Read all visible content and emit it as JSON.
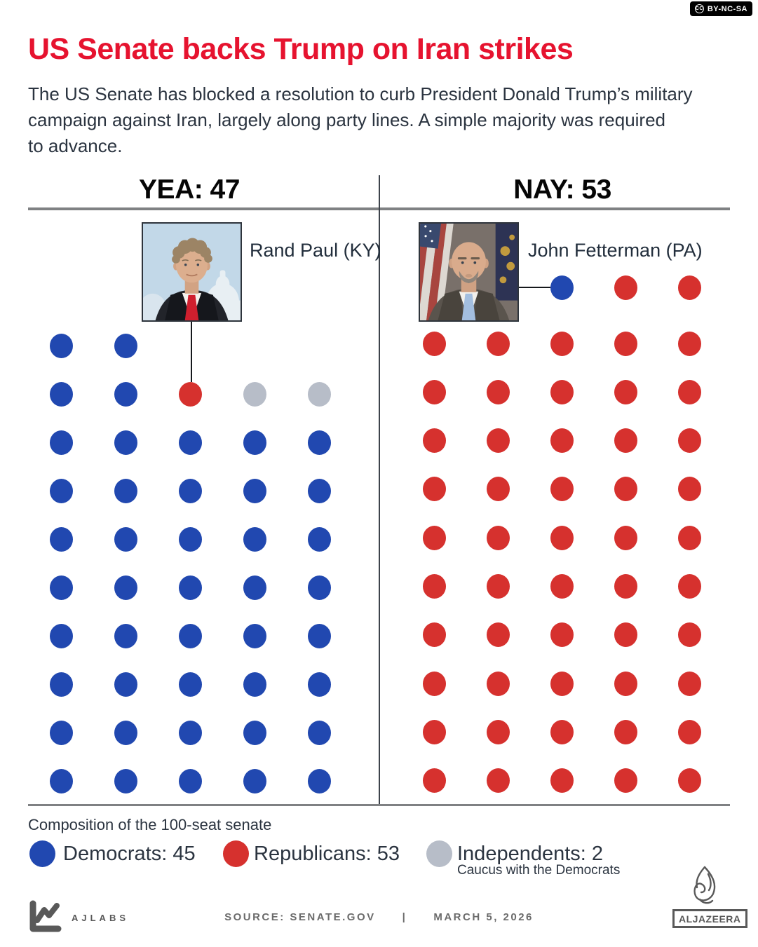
{
  "badge": {
    "cc": "CC",
    "license": "BY-NC-SA"
  },
  "header": {
    "title": "US Senate backs Trump on Iran strikes",
    "intro": "The US Senate has blocked a resolution to curb President Donald Trump’s military\ncampaign against Iran, largely along party lines. A simple majority was required\nto advance."
  },
  "chart_data": {
    "type": "unit_dot_chart",
    "title": "US Senate backs Trump on Iran strikes",
    "colors": {
      "D": "#2148b0",
      "R": "#d6312e",
      "I": "#b7bdc8"
    },
    "groups": [
      {
        "id": "yea",
        "label": "YEA: 47",
        "total": 47,
        "rows": [
          [
            "D",
            "D",
            "",
            "",
            ""
          ],
          [
            "D",
            "D",
            "R",
            "I",
            "I"
          ],
          [
            "D",
            "D",
            "D",
            "D",
            "D"
          ],
          [
            "D",
            "D",
            "D",
            "D",
            "D"
          ],
          [
            "D",
            "D",
            "D",
            "D",
            "D"
          ],
          [
            "D",
            "D",
            "D",
            "D",
            "D"
          ],
          [
            "D",
            "D",
            "D",
            "D",
            "D"
          ],
          [
            "D",
            "D",
            "D",
            "D",
            "D"
          ],
          [
            "D",
            "D",
            "D",
            "D",
            "D"
          ],
          [
            "D",
            "D",
            "D",
            "D",
            "D"
          ]
        ]
      },
      {
        "id": "nay",
        "label": "NAY: 53",
        "total": 53,
        "rows": [
          [
            "",
            "",
            "D",
            "R",
            "R"
          ],
          [
            "R",
            "R",
            "R",
            "R",
            "R"
          ],
          [
            "R",
            "R",
            "R",
            "R",
            "R"
          ],
          [
            "R",
            "R",
            "R",
            "R",
            "R"
          ],
          [
            "R",
            "R",
            "R",
            "R",
            "R"
          ],
          [
            "R",
            "R",
            "R",
            "R",
            "R"
          ],
          [
            "R",
            "R",
            "R",
            "R",
            "R"
          ],
          [
            "R",
            "R",
            "R",
            "R",
            "R"
          ],
          [
            "R",
            "R",
            "R",
            "R",
            "R"
          ],
          [
            "R",
            "R",
            "R",
            "R",
            "R"
          ],
          [
            "R",
            "R",
            "R",
            "R",
            "R"
          ]
        ]
      }
    ],
    "annotations": [
      {
        "group": "yea",
        "name": "Rand Paul (KY)",
        "seat": "R",
        "row": 1,
        "col": 2
      },
      {
        "group": "nay",
        "name": "John Fetterman (PA)",
        "seat": "D",
        "row": 0,
        "col": 2
      }
    ],
    "legend": {
      "title": "Composition of the 100-seat senate",
      "items": [
        {
          "key": "D",
          "name": "Democrats",
          "count": 45,
          "label": "Democrats: 45"
        },
        {
          "key": "R",
          "name": "Republicans",
          "count": 53,
          "label": "Republicans: 53"
        },
        {
          "key": "I",
          "name": "Independents",
          "count": 2,
          "label": "Independents: 2",
          "note": "Caucus with the Democrats"
        }
      ]
    }
  },
  "footer": {
    "ajlabs": "AJLABS",
    "source": "SOURCE:  SENATE.GOV",
    "separator": "|",
    "date": "MARCH 5, 2026",
    "brand": "ALJAZEERA"
  }
}
